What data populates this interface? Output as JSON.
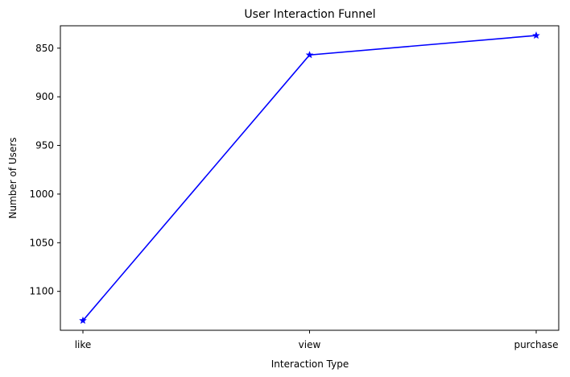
{
  "chart_data": {
    "type": "line",
    "title": "User Interaction Funnel",
    "xlabel": "Interaction Type",
    "ylabel": "Number of Users",
    "categories": [
      "like",
      "view",
      "purchase"
    ],
    "series": [
      {
        "values": [
          1130,
          857,
          837
        ],
        "color": "#0000ff",
        "marker": "star"
      }
    ],
    "ylim": [
      1140,
      827
    ],
    "y_inverted": true,
    "yticks": [
      850,
      900,
      950,
      1000,
      1050,
      1100
    ],
    "grid": false,
    "legend": "none"
  }
}
